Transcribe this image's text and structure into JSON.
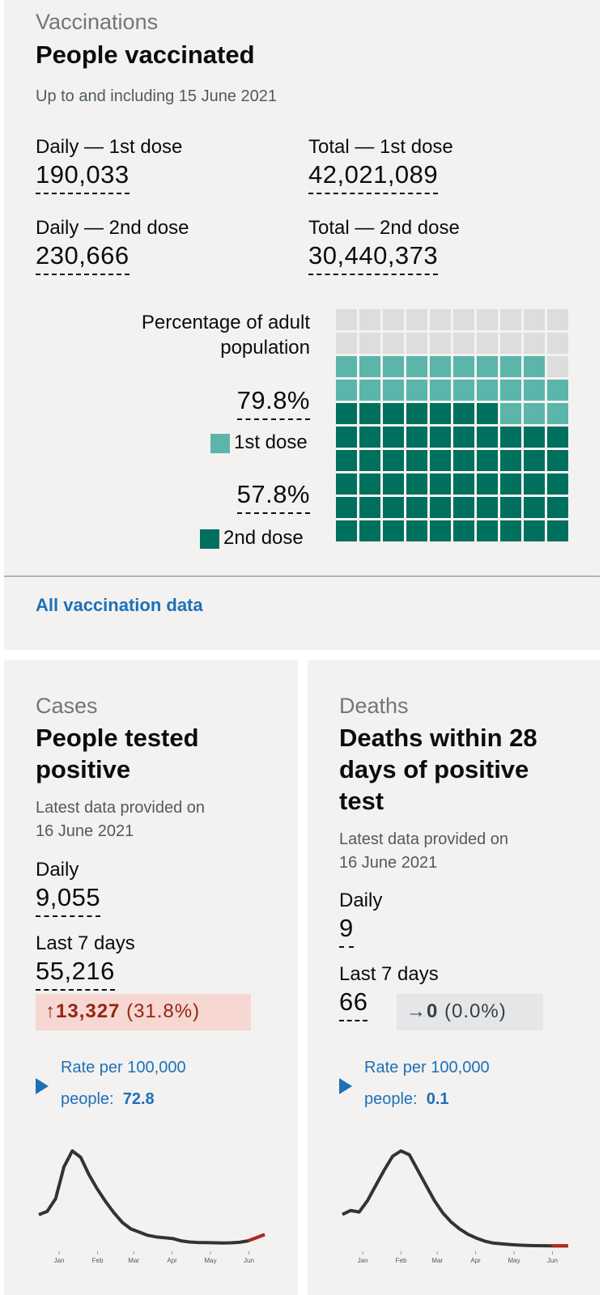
{
  "vaccinations": {
    "caption": "Vaccinations",
    "title": "People vaccinated",
    "subtitle": "Up to and including 15 June 2021",
    "metrics": [
      {
        "label": "Daily — 1st dose",
        "value": "190,033"
      },
      {
        "label": "Total — 1st dose",
        "value": "42,021,089"
      },
      {
        "label": "Daily — 2nd dose",
        "value": "230,666"
      },
      {
        "label": "Total — 2nd dose",
        "value": "30,440,373"
      }
    ],
    "waffle": {
      "heading": "Percentage of adult population",
      "items": [
        {
          "value": 79.8,
          "value_label": "79.8%",
          "name": "1st dose",
          "color": "#5bb5aa"
        },
        {
          "value": 57.8,
          "value_label": "57.8%",
          "name": "2nd dose",
          "color": "#00705e"
        }
      ]
    },
    "link": "All vaccination data"
  },
  "cases": {
    "caption": "Cases",
    "title": "People tested positive",
    "subtitle": "Latest data provided on 16 June 2021",
    "metrics": [
      {
        "label": "Daily",
        "value": "9,055"
      },
      {
        "label": "Last 7 days",
        "value": "55,216"
      }
    ],
    "change": {
      "arrow": "↑",
      "value": "13,327",
      "percent": "(31.8%)"
    },
    "rate": {
      "label": "Rate per 100,000 people:",
      "value": "72.8"
    },
    "sparkline": {
      "categories": [
        "Jan",
        "Feb",
        "Mar",
        "Apr",
        "May",
        "Jun"
      ],
      "series": [
        {
          "color": "#333333",
          "values": [
            20000,
            22000,
            30000,
            50000,
            60000,
            56000,
            45000,
            36000,
            28000,
            21000,
            15000,
            11000,
            9000,
            7000,
            6000,
            5500,
            5000,
            3500,
            2800,
            2500,
            2400,
            2300,
            2200,
            2300,
            2600,
            3500,
            5500,
            7500
          ]
        },
        {
          "color": "#b3271f",
          "values": [
            null,
            null,
            null,
            null,
            null,
            null,
            null,
            null,
            null,
            null,
            null,
            null,
            null,
            null,
            null,
            null,
            null,
            null,
            null,
            null,
            null,
            null,
            null,
            null,
            null,
            3500,
            5500,
            7500
          ]
        }
      ]
    }
  },
  "deaths": {
    "caption": "Deaths",
    "title": "Deaths within 28 days of positive test",
    "subtitle": "Latest data provided on 16 June 2021",
    "metrics": [
      {
        "label": "Daily",
        "value": "9"
      },
      {
        "label": "Last 7 days",
        "value": "66"
      }
    ],
    "change": {
      "arrow": "→",
      "value": "0",
      "percent": "(0.0%)"
    },
    "rate": {
      "label": "Rate per 100,000 people:",
      "value": "0.1"
    },
    "sparkline": {
      "categories": [
        "Jan",
        "Feb",
        "Mar",
        "Apr",
        "May",
        "Jun"
      ],
      "series": [
        {
          "color": "#333333",
          "values": [
            420,
            470,
            450,
            600,
            800,
            1000,
            1180,
            1250,
            1200,
            1000,
            800,
            600,
            440,
            320,
            230,
            160,
            110,
            70,
            45,
            35,
            25,
            18,
            14,
            11,
            10,
            9,
            9,
            9
          ]
        },
        {
          "color": "#b3271f",
          "values": [
            null,
            null,
            null,
            null,
            null,
            null,
            null,
            null,
            null,
            null,
            null,
            null,
            null,
            null,
            null,
            null,
            null,
            null,
            null,
            null,
            null,
            null,
            null,
            null,
            null,
            9,
            9,
            9
          ]
        }
      ]
    }
  }
}
